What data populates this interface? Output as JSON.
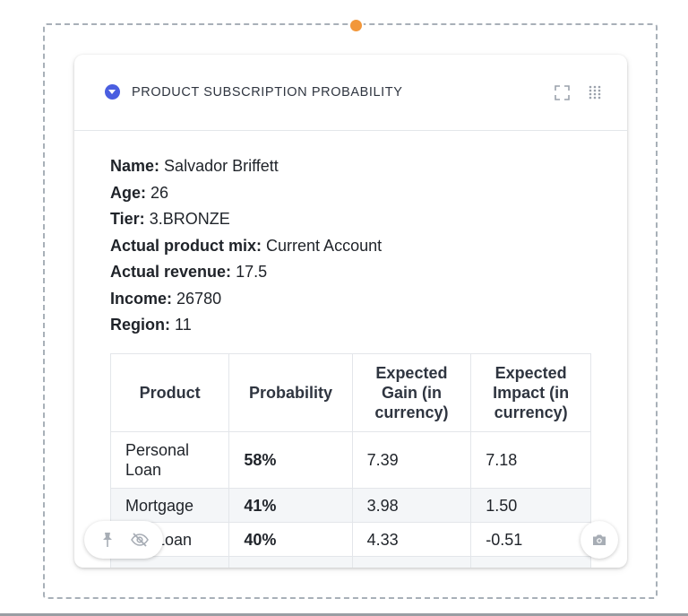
{
  "card": {
    "title": "PRODUCT SUBSCRIPTION PROBABILITY",
    "icons": {
      "collapse": "chevron-down-circle-icon",
      "expand": "expand-icon",
      "drag": "drag-handle-icon"
    }
  },
  "profile": [
    {
      "label": "Name:",
      "value": "Salvador Briffett"
    },
    {
      "label": "Age:",
      "value": "26"
    },
    {
      "label": "Tier:",
      "value": "3.BRONZE"
    },
    {
      "label": "Actual product mix:",
      "value": "Current Account"
    },
    {
      "label": "Actual revenue:",
      "value": "17.5"
    },
    {
      "label": "Income:",
      "value": "26780"
    },
    {
      "label": "Region:",
      "value": "11"
    }
  ],
  "table": {
    "headers": [
      "Product",
      "Probability",
      "Expected Gain (in currency)",
      "Expected Impact (in currency)"
    ],
    "rows": [
      {
        "product": "Personal Loan",
        "probability": "58%",
        "gain": "7.39",
        "impact": "7.18"
      },
      {
        "product": "Mortgage",
        "probability": "41%",
        "gain": "3.98",
        "impact": "1.50"
      },
      {
        "product": "Car Loan",
        "probability": "40%",
        "gain": "4.33",
        "impact": "-0.51"
      },
      {
        "product": "",
        "probability": "",
        "gain": "",
        "impact": ""
      }
    ]
  },
  "toolbar": {
    "pin": "pin-icon",
    "hide": "eye-off-icon",
    "screenshot": "camera-icon"
  },
  "colors": {
    "accent": "#4a5ee0",
    "handle": "#f2973a",
    "frame": "#a8b0b8"
  }
}
